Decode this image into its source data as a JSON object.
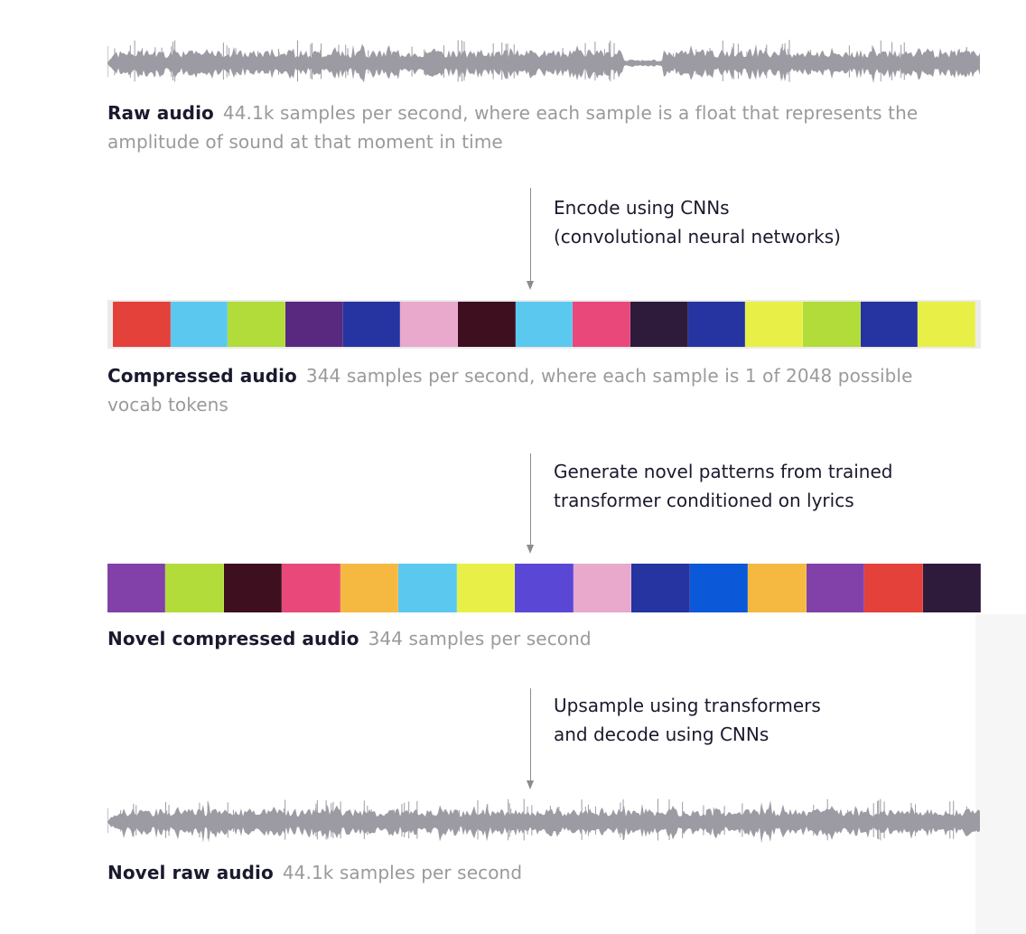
{
  "stages": {
    "raw": {
      "label": "Raw audio",
      "desc_line1": "44.1k samples per second, where each sample is a float that represents the",
      "desc_line2": "amplitude of sound at that moment in time"
    },
    "compressed": {
      "label": "Compressed audio",
      "desc_line1": "344 samples per second, where each sample is 1 of 2048 possible",
      "desc_line2": "vocab tokens",
      "token_colors": [
        "#e3413a",
        "#5bc8f0",
        "#b2dc3a",
        "#58297f",
        "#2534a0",
        "#e8a9cc",
        "#3e0f1f",
        "#5bc8f0",
        "#e8487a",
        "#2e1a3b",
        "#2534a0",
        "#e8f048",
        "#b2dc3a",
        "#2534a0",
        "#e8f048"
      ]
    },
    "novel_compressed": {
      "label": "Novel compressed audio",
      "desc": "344 samples per second",
      "token_colors": [
        "#8241a8",
        "#b2dc3a",
        "#3e0f1f",
        "#e8487a",
        "#f5b942",
        "#5bc8f0",
        "#e8f048",
        "#5b47d6",
        "#e8a9cc",
        "#2534a0",
        "#0b58d8",
        "#f5b942",
        "#8241a8",
        "#e3413a",
        "#2e1a3b"
      ]
    },
    "novel_raw": {
      "label": "Novel raw audio",
      "desc": "44.1k samples per second"
    }
  },
  "steps": {
    "encode": {
      "line1": "Encode using CNNs",
      "line2": "(convolutional neural networks)"
    },
    "generate": {
      "line1": "Generate novel patterns from trained",
      "line2": "transformer conditioned on lyrics"
    },
    "upsample": {
      "line1": "Upsample using transformers",
      "line2": "and decode using CNNs"
    }
  },
  "colors": {
    "waveform": "#9c9ba3",
    "arrow": "#8c8c8c",
    "label": "#1a1a2e",
    "desc": "#9a9a9a"
  }
}
